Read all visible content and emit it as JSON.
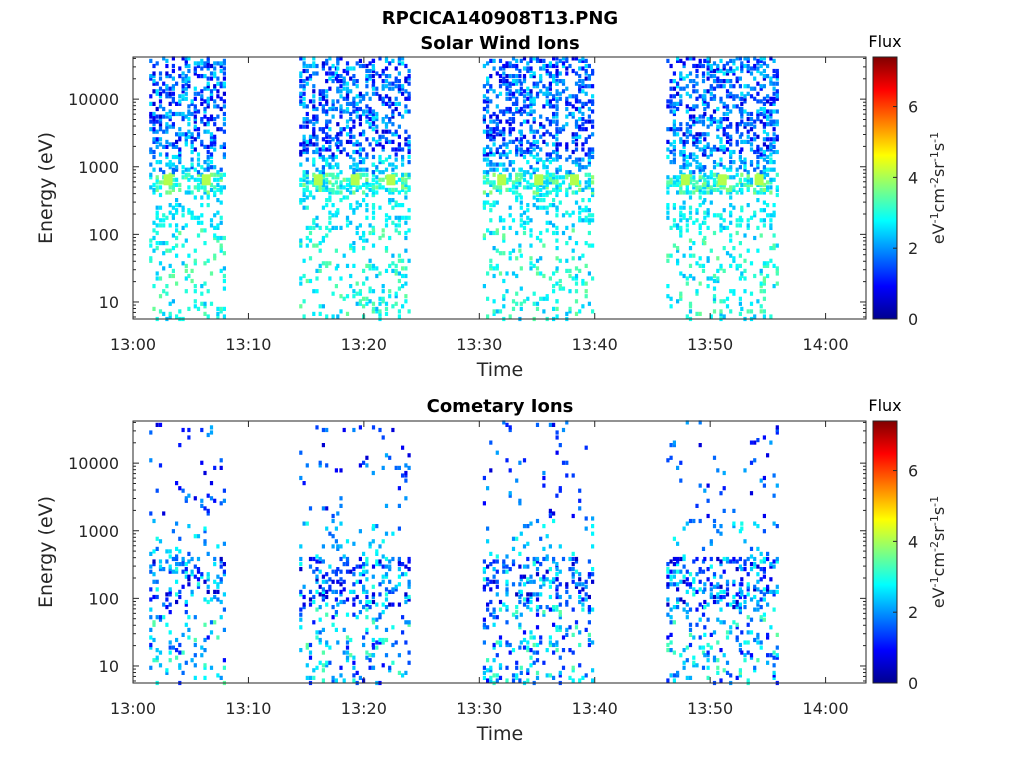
{
  "figure": {
    "title": "RPCICA140908T13.PNG"
  },
  "chart_data": [
    {
      "type": "heatmap",
      "title": "Solar Wind Ions",
      "xlabel": "Time",
      "ylabel": "Energy (eV)",
      "x_ticks": [
        "13:00",
        "13:10",
        "13:20",
        "13:30",
        "13:40",
        "13:50",
        "14:00"
      ],
      "xlim_minutes": [
        0,
        63.5
      ],
      "y_scale": "log",
      "y_ticks": [
        "10",
        "100",
        "1000",
        "10000"
      ],
      "ylim": [
        5.6,
        42000
      ],
      "colorbar": {
        "title": "Flux",
        "label": "eV-1cm-2sr-1s-1",
        "range": [
          0,
          7.4
        ],
        "ticks": [
          "0",
          "2",
          "4",
          "6"
        ],
        "colormap": "jet"
      },
      "burst_centers_minutes": [
        3.0,
        6.3,
        16.0,
        19.2,
        22.3,
        31.9,
        35.1,
        38.2,
        47.8,
        51.0,
        54.2
      ],
      "features": {
        "bright_peak_energy_ev": 630,
        "bright_peak_level": 3.8,
        "high_energy_level_range": [
          0.5,
          2.5
        ],
        "low_energy_level_range": [
          2.5,
          3.5
        ]
      },
      "grid": false
    },
    {
      "type": "heatmap",
      "title": "Cometary Ions",
      "xlabel": "Time",
      "ylabel": "Energy (eV)",
      "x_ticks": [
        "13:00",
        "13:10",
        "13:20",
        "13:30",
        "13:40",
        "13:50",
        "14:00"
      ],
      "xlim_minutes": [
        0,
        63.5
      ],
      "y_scale": "log",
      "y_ticks": [
        "10",
        "100",
        "1000",
        "10000"
      ],
      "ylim": [
        5.6,
        42000
      ],
      "colorbar": {
        "title": "Flux",
        "label": "eV-1cm-2sr-1s-1",
        "range": [
          0,
          7.4
        ],
        "ticks": [
          "0",
          "2",
          "4",
          "6"
        ],
        "colormap": "jet"
      },
      "burst_centers_minutes": [
        3.0,
        6.3,
        16.0,
        19.2,
        22.3,
        31.9,
        35.1,
        38.2,
        47.8,
        51.0,
        54.2
      ],
      "features": {
        "sparse_high_energy": true,
        "dense_energy_band_ev": [
          80,
          200
        ],
        "low_energy_level_range": [
          0.5,
          3.0
        ]
      },
      "grid": false
    }
  ]
}
